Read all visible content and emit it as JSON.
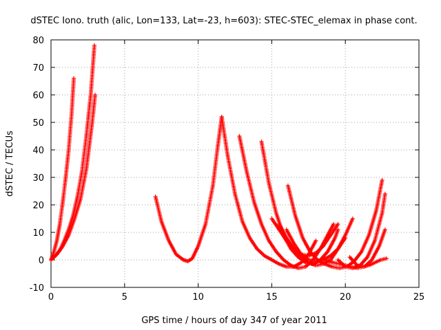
{
  "chart_data": {
    "type": "scatter",
    "title": "dSTEC Iono. truth (alic, Lon=133, Lat=-23, h=603): STEC-STEC_elemax in phase cont.",
    "xlabel": "GPS time / hours of day 347 of year 2011",
    "ylabel": "dSTEC  / TECUs",
    "xlim": [
      0,
      25
    ],
    "ylim": [
      -10,
      80
    ],
    "xticks": [
      "0",
      "5",
      "10",
      "15",
      "20",
      "25"
    ],
    "yticks": [
      "-10",
      "0",
      "10",
      "20",
      "30",
      "40",
      "50",
      "60",
      "70",
      "80"
    ],
    "grid": true,
    "marker": "+",
    "color": "#ff0000",
    "series": [
      {
        "x": [
          0.0,
          0.2,
          0.4,
          0.6,
          0.8,
          1.0,
          1.2,
          1.4,
          1.55
        ],
        "y": [
          0,
          3,
          7,
          13,
          21,
          30,
          40,
          53,
          66
        ]
      },
      {
        "x": [
          0.0,
          0.3,
          0.6,
          0.9,
          1.2,
          1.5,
          1.8,
          2.1,
          2.4,
          2.7,
          2.95
        ],
        "y": [
          0,
          1.5,
          3.5,
          7,
          11,
          16,
          23,
          32,
          45,
          60,
          78
        ]
      },
      {
        "x": [
          0.0,
          0.4,
          0.8,
          1.2,
          1.6,
          2.0,
          2.4,
          2.8,
          3.0
        ],
        "y": [
          0,
          2,
          5,
          9,
          15,
          22,
          33,
          50,
          60
        ]
      },
      {
        "x": [
          7.1,
          7.5,
          8.0,
          8.5,
          9.0,
          9.3,
          9.6,
          10.0,
          10.5,
          11.0,
          11.3,
          11.6
        ],
        "y": [
          23,
          14,
          7,
          2,
          0,
          -0.5,
          0.5,
          5,
          13,
          27,
          40,
          52
        ]
      },
      {
        "x": [
          11.6,
          12.0,
          12.5,
          13.0,
          13.5,
          14.0,
          14.5,
          15.0,
          15.5,
          16.0,
          16.5,
          17.0,
          17.5,
          18.0
        ],
        "y": [
          52,
          38,
          24,
          14,
          8,
          4,
          1.5,
          0,
          -1.5,
          -2.5,
          -2.5,
          -1,
          2,
          7
        ]
      },
      {
        "x": [
          12.8,
          13.3,
          13.8,
          14.3,
          14.8,
          15.3,
          15.8,
          16.3,
          16.8,
          17.3,
          17.8,
          18.3,
          18.8,
          19.2
        ],
        "y": [
          45,
          32,
          21,
          13,
          7,
          3,
          0,
          -2,
          -3,
          -2.5,
          0,
          4,
          9,
          13
        ]
      },
      {
        "x": [
          14.3,
          14.8,
          15.3,
          15.8,
          16.3,
          16.8,
          17.3,
          17.8,
          18.3,
          18.8,
          19.3,
          19.5
        ],
        "y": [
          43,
          28,
          17,
          9,
          4,
          1,
          -1,
          -1.5,
          0,
          3,
          8,
          11
        ]
      },
      {
        "x": [
          16.1,
          16.6,
          17.1,
          17.6,
          18.1,
          18.6,
          19.1,
          19.6,
          20.1,
          20.6,
          21.1,
          21.6,
          22.1,
          22.5
        ],
        "y": [
          27,
          16,
          8,
          3,
          0,
          -1.5,
          -2.5,
          -3,
          -2.5,
          -0.5,
          3,
          9,
          18,
          29
        ]
      },
      {
        "x": [
          15.0,
          15.5,
          16.0,
          16.5,
          17.0,
          17.5,
          18.0,
          18.5,
          19.0,
          19.5
        ],
        "y": [
          15,
          11,
          7,
          4,
          2,
          1.5,
          2.5,
          5,
          9,
          13
        ]
      },
      {
        "x": [
          15.5,
          16.0,
          16.5,
          17.0,
          17.5,
          18.0,
          18.5,
          19.0,
          19.5,
          20.0
        ],
        "y": [
          13,
          8,
          4,
          1,
          -1,
          -2,
          -1.5,
          0,
          4,
          8
        ]
      },
      {
        "x": [
          16.0,
          16.5,
          17.0,
          17.5,
          18.0,
          18.5,
          19.0,
          19.5,
          20.0,
          20.5
        ],
        "y": [
          11,
          6,
          2,
          0,
          -0.5,
          0,
          1.5,
          4,
          9,
          15
        ]
      },
      {
        "x": [
          19.5,
          20.0,
          20.5,
          21.0,
          21.5,
          22.0,
          22.5,
          22.7
        ],
        "y": [
          0,
          -2.5,
          -3,
          -2,
          1,
          7,
          17,
          24
        ]
      },
      {
        "x": [
          20.3,
          20.8,
          21.3,
          21.8,
          22.3,
          22.7
        ],
        "y": [
          1,
          -2,
          -2.5,
          0,
          5,
          11
        ]
      },
      {
        "x": [
          18.5,
          19.2,
          20.0,
          20.8,
          21.6,
          22.4,
          22.8
        ],
        "y": [
          0,
          -1,
          -2,
          -3,
          -2,
          0,
          0.5
        ]
      }
    ]
  }
}
